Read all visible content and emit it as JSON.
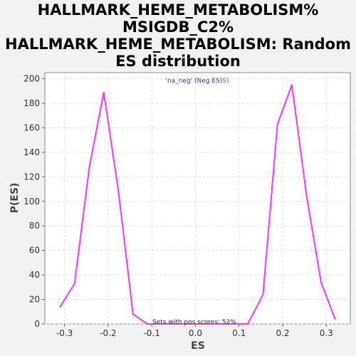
{
  "chart_data": {
    "type": "line",
    "title_lines": [
      "HALLMARK_HEME_METABOLISM%",
      "MSIGDB_C2%",
      "HALLMARK_HEME_METABOLISM: Random",
      "ES distribution"
    ],
    "xlabel": "ES",
    "ylabel": "P(ES)",
    "xlim": [
      -0.345,
      0.355
    ],
    "ylim": [
      0,
      205
    ],
    "x_ticks": [
      -0.3,
      -0.2,
      -0.1,
      0.0,
      0.1,
      0.2,
      0.3
    ],
    "x_tick_labels": [
      "-0.3",
      "-0.2",
      "-0.1",
      "0.0",
      "0.1",
      "0.2",
      "0.3"
    ],
    "y_ticks": [
      0,
      20,
      40,
      60,
      80,
      100,
      120,
      140,
      160,
      180,
      200
    ],
    "y_tick_labels": [
      "0",
      "20",
      "40",
      "60",
      "80",
      "100",
      "120",
      "140",
      "160",
      "180",
      "200"
    ],
    "grid": true,
    "legend": {
      "placement": "top-center",
      "parts": [
        {
          "text": "'na_neg' (Neg ES)",
          "color": "#3333cc"
        },
        {
          "text": "S)",
          "color": "#ff3333"
        }
      ]
    },
    "annotation": "Sets with pos scores: 52%",
    "series": [
      {
        "color": "#ff33ff",
        "x": [
          -0.31,
          -0.277,
          -0.243,
          -0.21,
          -0.176,
          -0.143,
          -0.11,
          -0.077,
          0.12,
          0.155,
          0.188,
          0.221,
          0.255,
          0.288,
          0.32
        ],
        "y": [
          14,
          33,
          128,
          189,
          107,
          8,
          0,
          0,
          0,
          24,
          163,
          195,
          104,
          34,
          4
        ]
      }
    ]
  }
}
